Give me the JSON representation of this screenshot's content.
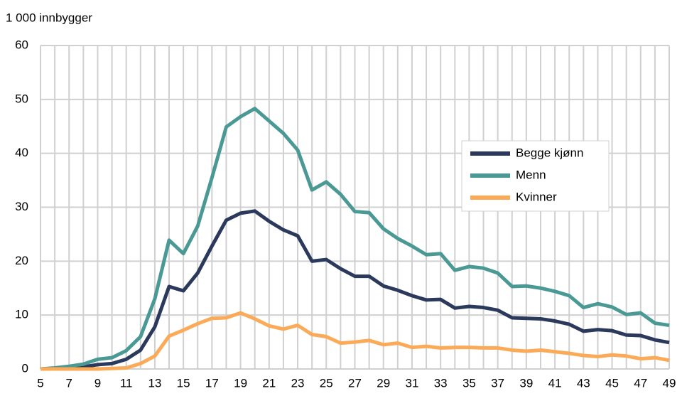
{
  "chart_data": {
    "type": "line",
    "ylabel": "1 000 innbygger",
    "x": [
      5,
      6,
      7,
      8,
      9,
      10,
      11,
      12,
      13,
      14,
      15,
      16,
      17,
      18,
      19,
      20,
      21,
      22,
      23,
      24,
      25,
      26,
      27,
      28,
      29,
      30,
      31,
      32,
      33,
      34,
      35,
      36,
      37,
      38,
      39,
      40,
      41,
      42,
      43,
      44,
      45,
      46,
      47,
      48,
      49
    ],
    "series": [
      {
        "name": "Begge kjønn",
        "color": "#2b3a5c",
        "values": [
          0,
          0.1,
          0.2,
          0.4,
          0.8,
          1.0,
          1.8,
          3.5,
          7.8,
          15.3,
          14.5,
          17.8,
          22.8,
          27.6,
          28.9,
          29.3,
          27.4,
          25.8,
          24.7,
          20.0,
          20.3,
          18.6,
          17.2,
          17.2,
          15.4,
          14.6,
          13.6,
          12.8,
          12.9,
          11.3,
          11.6,
          11.4,
          10.9,
          9.5,
          9.4,
          9.3,
          8.9,
          8.3,
          7.0,
          7.3,
          7.1,
          6.3,
          6.2,
          5.4,
          4.9
        ]
      },
      {
        "name": "Menn",
        "color": "#4a9994",
        "values": [
          0,
          0.2,
          0.5,
          0.9,
          1.8,
          2.1,
          3.4,
          6.0,
          13.0,
          23.9,
          21.4,
          26.5,
          35.5,
          44.9,
          46.8,
          48.3,
          46.0,
          43.7,
          40.6,
          33.2,
          34.7,
          32.4,
          29.2,
          29.0,
          26.0,
          24.2,
          22.8,
          21.2,
          21.4,
          18.3,
          19.0,
          18.7,
          17.8,
          15.3,
          15.4,
          15.0,
          14.4,
          13.6,
          11.4,
          12.1,
          11.5,
          10.1,
          10.4,
          8.5,
          8.1
        ]
      },
      {
        "name": "Kvinner",
        "color": "#fbaa57",
        "values": [
          0,
          0,
          0,
          0,
          0,
          0.1,
          0.2,
          1.0,
          2.4,
          6.1,
          7.2,
          8.4,
          9.4,
          9.5,
          10.4,
          9.3,
          8.0,
          7.4,
          8.1,
          6.4,
          6.0,
          4.8,
          5.0,
          5.3,
          4.5,
          4.8,
          4.0,
          4.2,
          3.9,
          4.0,
          4.0,
          3.9,
          3.9,
          3.5,
          3.3,
          3.5,
          3.2,
          2.9,
          2.5,
          2.3,
          2.6,
          2.4,
          1.9,
          2.1,
          1.6
        ]
      }
    ],
    "xlim": [
      5,
      49
    ],
    "xticks": [
      5,
      7,
      9,
      11,
      13,
      15,
      17,
      19,
      21,
      23,
      25,
      27,
      29,
      31,
      33,
      35,
      37,
      39,
      41,
      43,
      45,
      47,
      49
    ],
    "ylim": [
      0,
      60
    ],
    "yticks": [
      0,
      10,
      20,
      30,
      40,
      50,
      60
    ],
    "grid": true,
    "legend": "right"
  }
}
